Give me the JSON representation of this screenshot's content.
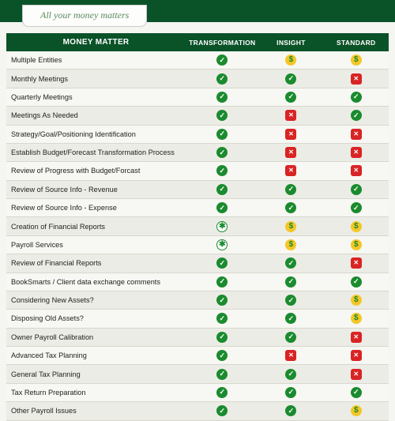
{
  "header": {
    "tagline": "All your money matters"
  },
  "columns": {
    "main": "MONEY MATTER",
    "c1": "TRANSFORMATION",
    "c2": "INSIGHT",
    "c3": "STANDARD"
  },
  "icons": {
    "check": "check",
    "dollar": "dollar",
    "x": "x",
    "star": "star"
  },
  "colors": {
    "header_bg": "#0a5228",
    "check_bg": "#1a8b2e",
    "dollar_bg": "#f4c727",
    "x_bg": "#d92424"
  },
  "rows": [
    {
      "label": "Multiple Entities",
      "c1": "check",
      "c2": "dollar",
      "c3": "dollar"
    },
    {
      "label": "Monthly Meetings",
      "c1": "check",
      "c2": "check",
      "c3": "x"
    },
    {
      "label": "Quarterly Meetings",
      "c1": "check",
      "c2": "check",
      "c3": "check"
    },
    {
      "label": "Meetings As Needed",
      "c1": "check",
      "c2": "x",
      "c3": "check"
    },
    {
      "label": "Strategy/Goal/Positioning Identification",
      "c1": "check",
      "c2": "x",
      "c3": "x"
    },
    {
      "label": "Establish Budget/Forecast Transformation Process",
      "c1": "check",
      "c2": "x",
      "c3": "x"
    },
    {
      "label": "Review of Progress with Budget/Forcast",
      "c1": "check",
      "c2": "x",
      "c3": "x"
    },
    {
      "label": "Review of Source Info - Revenue",
      "c1": "check",
      "c2": "check",
      "c3": "check"
    },
    {
      "label": "Review of Source Info - Expense",
      "c1": "check",
      "c2": "check",
      "c3": "check"
    },
    {
      "label": "Creation of Financial Reports",
      "c1": "star",
      "c2": "dollar",
      "c3": "dollar"
    },
    {
      "label": "Payroll Services",
      "c1": "star",
      "c2": "dollar",
      "c3": "dollar"
    },
    {
      "label": "Review of Financial Reports",
      "c1": "check",
      "c2": "check",
      "c3": "x"
    },
    {
      "label": "BookSmarts / Client data exchange comments",
      "c1": "check",
      "c2": "check",
      "c3": "check"
    },
    {
      "label": "Considering New Assets?",
      "c1": "check",
      "c2": "check",
      "c3": "dollar"
    },
    {
      "label": "Disposing Old Assets?",
      "c1": "check",
      "c2": "check",
      "c3": "dollar"
    },
    {
      "label": "Owner Payroll Calibration",
      "c1": "check",
      "c2": "check",
      "c3": "x"
    },
    {
      "label": "Advanced Tax Planning",
      "c1": "check",
      "c2": "x",
      "c3": "x"
    },
    {
      "label": "General Tax Planning",
      "c1": "check",
      "c2": "check",
      "c3": "x"
    },
    {
      "label": "Tax Return Preparation",
      "c1": "check",
      "c2": "check",
      "c3": "check"
    },
    {
      "label": "Other Payroll Issues",
      "c1": "check",
      "c2": "check",
      "c3": "dollar"
    }
  ]
}
